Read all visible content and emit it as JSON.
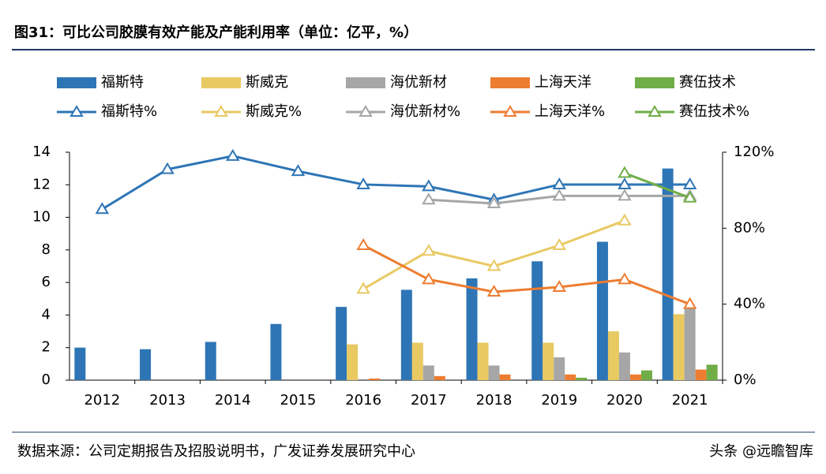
{
  "chart_data": {
    "type": "combo",
    "title": "图31：可比公司胶膜有效产能及产能利用率（单位：亿平，%）",
    "categories": [
      "2012",
      "2013",
      "2014",
      "2015",
      "2016",
      "2017",
      "2018",
      "2019",
      "2020",
      "2021"
    ],
    "ylim": [
      0,
      14
    ],
    "yticks": [
      0,
      2,
      4,
      6,
      8,
      10,
      12,
      14
    ],
    "y2lim": [
      0,
      120
    ],
    "y2ticks": [
      {
        "value": 0,
        "label": "0%"
      },
      {
        "value": 40,
        "label": "40%"
      },
      {
        "value": 80,
        "label": "80%"
      },
      {
        "value": 120,
        "label": "120%"
      }
    ],
    "series": [
      {
        "name": "福斯特",
        "kind": "bar",
        "color": "#2e75b6",
        "values": [
          2.0,
          1.9,
          2.35,
          3.45,
          4.5,
          5.55,
          6.25,
          7.3,
          8.5,
          13.0
        ]
      },
      {
        "name": "斯威克",
        "kind": "bar",
        "color": "#e8c962",
        "values": [
          null,
          null,
          null,
          null,
          2.2,
          2.3,
          2.3,
          2.3,
          3.0,
          4.05
        ]
      },
      {
        "name": "海优新材",
        "kind": "bar",
        "color": "#a6a6a6",
        "values": [
          null,
          null,
          null,
          null,
          null,
          0.9,
          0.9,
          1.4,
          1.7,
          4.4
        ]
      },
      {
        "name": "上海天洋",
        "kind": "bar",
        "color": "#ed7d31",
        "values": [
          null,
          null,
          null,
          null,
          0.1,
          0.25,
          0.35,
          0.35,
          0.35,
          0.65
        ]
      },
      {
        "name": "赛伍技术",
        "kind": "bar",
        "color": "#70ad47",
        "values": [
          null,
          null,
          null,
          null,
          null,
          null,
          null,
          0.15,
          0.6,
          0.95
        ]
      },
      {
        "name": "福斯特%",
        "kind": "line",
        "axis": "y2",
        "color": "#2e75b6",
        "values": [
          90,
          111,
          118,
          110,
          103,
          102,
          95,
          103,
          103,
          103
        ]
      },
      {
        "name": "斯威克%",
        "kind": "line",
        "axis": "y2",
        "color": "#e8c962",
        "values": [
          null,
          null,
          null,
          null,
          48,
          68,
          60,
          71,
          84,
          null
        ]
      },
      {
        "name": "海优新材%",
        "kind": "line",
        "axis": "y2",
        "color": "#a6a6a6",
        "values": [
          null,
          null,
          null,
          null,
          null,
          95,
          93,
          97,
          97,
          97
        ]
      },
      {
        "name": "上海天洋%",
        "kind": "line",
        "axis": "y2",
        "color": "#ed7d31",
        "values": [
          null,
          null,
          null,
          null,
          71,
          53,
          46.5,
          49,
          53,
          40
        ]
      },
      {
        "name": "赛伍技术%",
        "kind": "line",
        "axis": "y2",
        "color": "#70ad47",
        "values": [
          null,
          null,
          null,
          null,
          null,
          null,
          null,
          null,
          109,
          96
        ]
      }
    ],
    "source": "数据来源：公司定期报告及招股说明书，广发证券发展研究中心",
    "watermark": "头条 @远瞻智库"
  }
}
